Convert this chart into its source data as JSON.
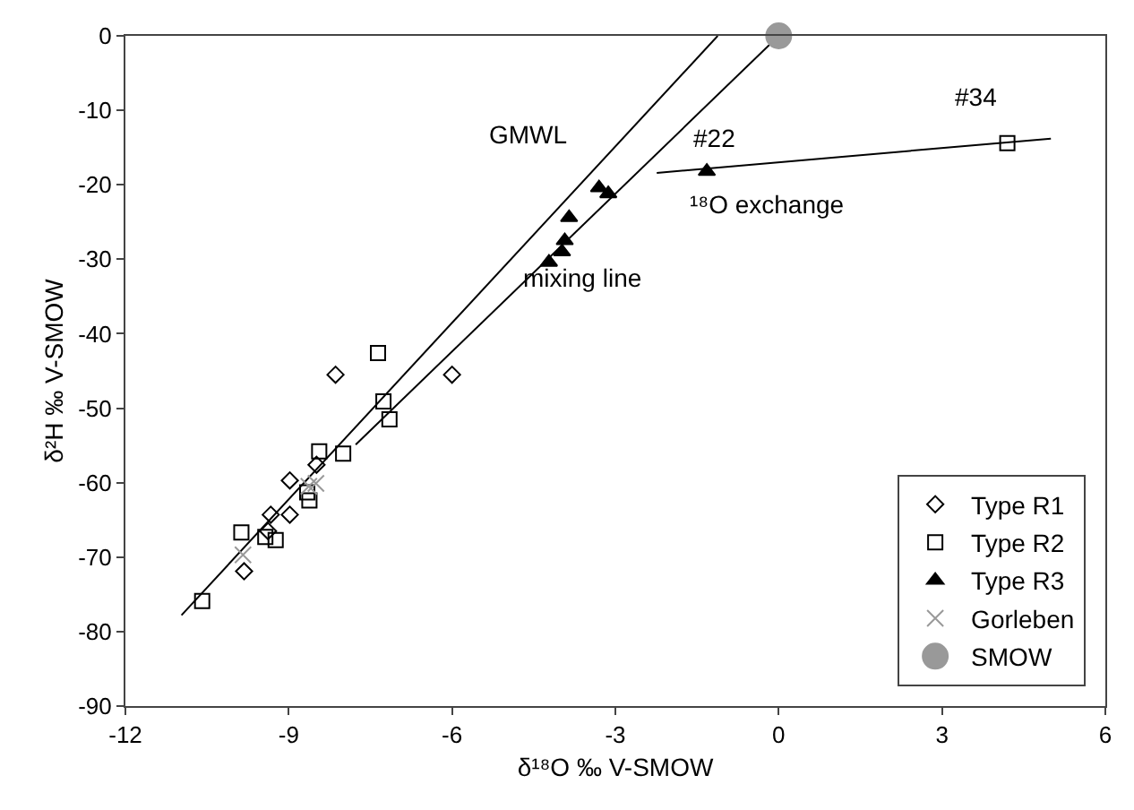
{
  "chart_data": {
    "type": "scatter",
    "xlabel": "δ¹⁸O ‰ V-SMOW",
    "ylabel": "δ²H ‰ V-SMOW",
    "xlim": [
      -12,
      6
    ],
    "xticks": [
      -12,
      -9,
      -6,
      -3,
      0,
      3,
      6
    ],
    "ylim": [
      -90,
      0
    ],
    "yticks": [
      -90,
      -80,
      -70,
      -60,
      -50,
      -40,
      -30,
      -20,
      -10,
      0
    ],
    "grid": false,
    "legend": "bottom right",
    "series": [
      {
        "type": "line",
        "color": "#000000",
        "marker": "none",
        "x": [
          -10.97,
          -1.12
        ],
        "values": [
          -77.8,
          0
        ]
      },
      {
        "type": "line",
        "color": "#000000",
        "marker": "none",
        "x": [
          -7.77,
          0
        ],
        "values": [
          -54.9,
          0
        ]
      },
      {
        "type": "line",
        "color": "#000000",
        "marker": "none",
        "x": [
          -2.24,
          5.0
        ],
        "values": [
          -18.4,
          -13.8
        ]
      },
      {
        "name": "Type R1",
        "color": "#000000",
        "marker": "diamond",
        "x": [
          -8.14,
          -6.0,
          -8.49,
          -8.98,
          -9.33,
          -8.98,
          -9.82,
          -9.38
        ],
        "values": [
          -45.5,
          -45.5,
          -57.6,
          -59.7,
          -64.3,
          -64.3,
          -71.9,
          -66.5
        ]
      },
      {
        "name": "Type R2",
        "color": "#000000",
        "marker": "square",
        "x": [
          -7.36,
          -7.26,
          -7.15,
          -8.44,
          -8.0,
          -8.62,
          -8.66,
          -9.87,
          -9.43,
          -9.24,
          -10.59,
          4.2
        ],
        "values": [
          -42.6,
          -49.1,
          -51.5,
          -55.8,
          -56.1,
          -62.4,
          -61.3,
          -66.7,
          -67.3,
          -67.7,
          -75.9,
          -14.4
        ]
      },
      {
        "name": "Type R3",
        "color": "#000000",
        "marker": "triangle",
        "x": [
          -1.32,
          -3.3,
          -3.13,
          -3.85,
          -3.93,
          -3.98,
          -4.22
        ],
        "values": [
          -18.2,
          -20.4,
          -21.2,
          -24.4,
          -27.5,
          -29.0,
          -30.4
        ]
      },
      {
        "name": "Gorleben",
        "color": "#999999",
        "marker": "cross",
        "x": [
          -9.84,
          -8.63,
          -8.5
        ],
        "values": [
          -69.7,
          -60.5,
          -60.1
        ]
      },
      {
        "name": "SMOW",
        "color": "#999999",
        "marker": "circle",
        "x": [
          0
        ],
        "values": [
          0
        ]
      }
    ],
    "annotations": [
      "GMWL",
      "mixing line",
      "#22",
      "#34",
      "¹⁸O exchange"
    ]
  }
}
